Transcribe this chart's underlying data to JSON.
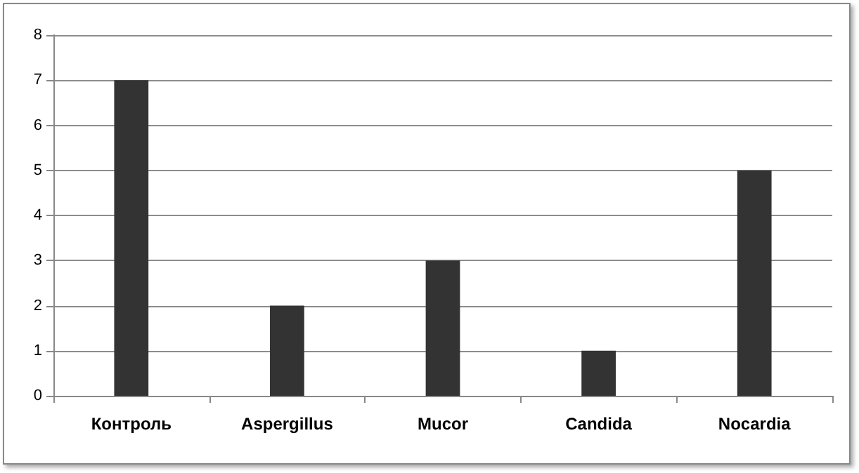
{
  "chart_data": {
    "type": "bar",
    "categories": [
      "Контроль",
      "Aspergillus",
      "Mucor",
      "Candida",
      "Nocardia"
    ],
    "values": [
      7,
      2,
      3,
      1,
      5
    ],
    "color": "#333333",
    "ylim": [
      0,
      8
    ],
    "yticks": [
      0,
      1,
      2,
      3,
      4,
      5,
      6,
      7,
      8
    ],
    "grid": "y"
  }
}
